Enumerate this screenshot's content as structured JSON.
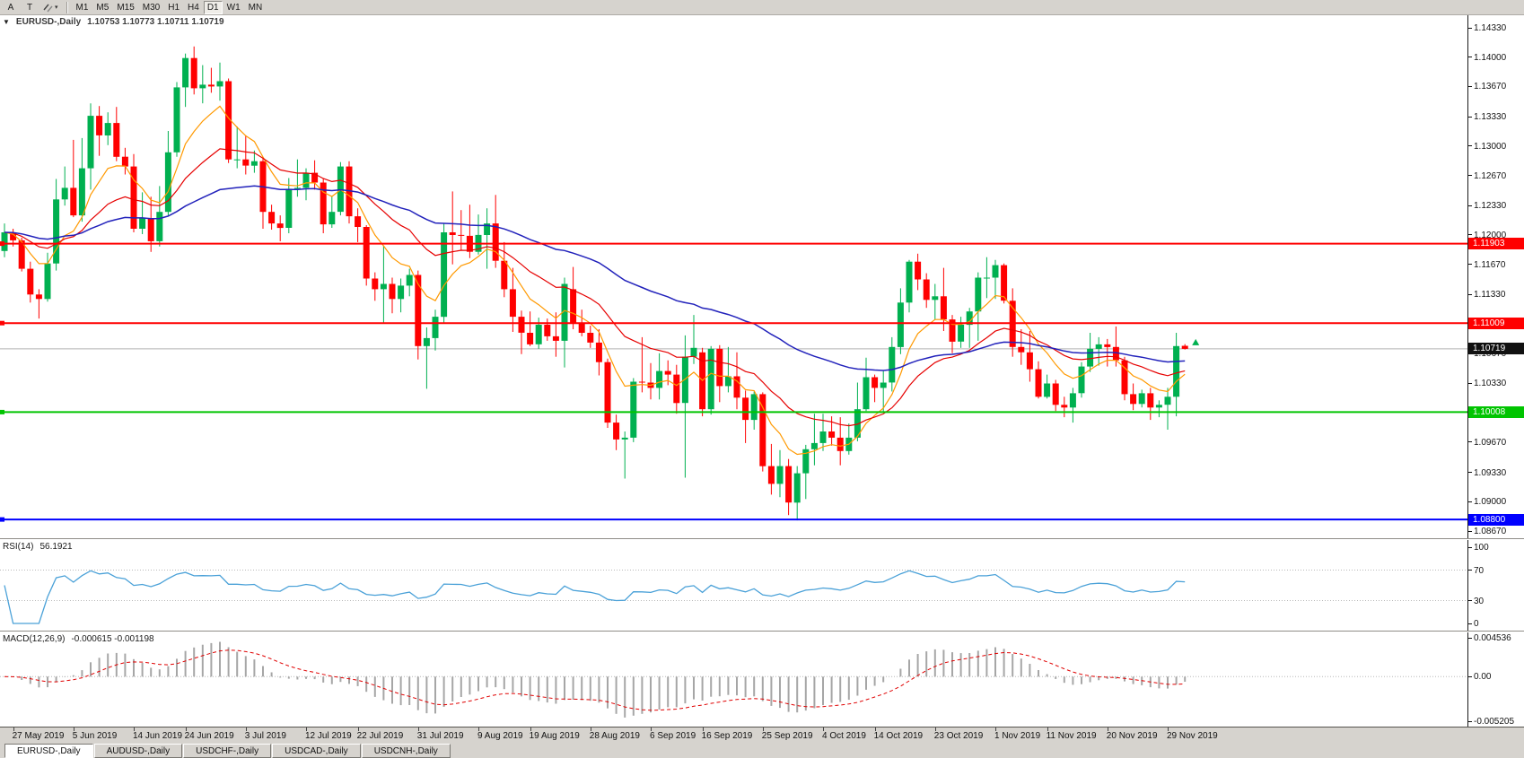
{
  "toolbar": {
    "letter_buttons": [
      "A",
      "T"
    ],
    "caret": "▾",
    "timeframes": [
      "M1",
      "M5",
      "M15",
      "M30",
      "H1",
      "H4",
      "D1",
      "W1",
      "MN"
    ],
    "active_timeframe": "D1"
  },
  "chart": {
    "collapse_icon": "▼",
    "symbol_label": "EURUSD-,Daily",
    "ohlc": "1.10753 1.10773 1.10711 1.10719"
  },
  "chart_data": {
    "type": "candlestick",
    "symbol": "EURUSD-",
    "timeframe": "Daily",
    "colors": {
      "bull": "#00b050",
      "bear": "#ff0000",
      "background": "#ffffff"
    },
    "y_axis": {
      "ticks": [
        "1.14330",
        "1.14000",
        "1.13670",
        "1.13330",
        "1.13000",
        "1.12670",
        "1.12330",
        "1.12000",
        "1.11670",
        "1.11330",
        "1.11000",
        "1.10670",
        "1.10330",
        "1.10000",
        "1.09670",
        "1.09330",
        "1.09000",
        "1.08670"
      ]
    },
    "x_labels": [
      {
        "i": 1,
        "t": "27 May 2019"
      },
      {
        "i": 8,
        "t": "5 Jun 2019"
      },
      {
        "i": 15,
        "t": "14 Jun 2019"
      },
      {
        "i": 21,
        "t": "24 Jun 2019"
      },
      {
        "i": 28,
        "t": "3 Jul 2019"
      },
      {
        "i": 35,
        "t": "12 Jul 2019"
      },
      {
        "i": 41,
        "t": "22 Jul 2019"
      },
      {
        "i": 48,
        "t": "31 Jul 2019"
      },
      {
        "i": 55,
        "t": "9 Aug 2019"
      },
      {
        "i": 61,
        "t": "19 Aug 2019"
      },
      {
        "i": 68,
        "t": "28 Aug 2019"
      },
      {
        "i": 75,
        "t": "6 Sep 2019"
      },
      {
        "i": 81,
        "t": "16 Sep 2019"
      },
      {
        "i": 88,
        "t": "25 Sep 2019"
      },
      {
        "i": 95,
        "t": "4 Oct 2019"
      },
      {
        "i": 101,
        "t": "14 Oct 2019"
      },
      {
        "i": 108,
        "t": "23 Oct 2019"
      },
      {
        "i": 115,
        "t": "1 Nov 2019"
      },
      {
        "i": 121,
        "t": "11 Nov 2019"
      },
      {
        "i": 128,
        "t": "20 Nov 2019"
      },
      {
        "i": 135,
        "t": "29 Nov 2019"
      }
    ],
    "candles": [
      [
        1.1182,
        1.1213,
        1.1175,
        1.1203
      ],
      [
        1.1203,
        1.1207,
        1.1187,
        1.1194
      ],
      [
        1.1194,
        1.1197,
        1.1159,
        1.1162
      ],
      [
        1.1162,
        1.117,
        1.1124,
        1.1133
      ],
      [
        1.1133,
        1.1139,
        1.1106,
        1.1128
      ],
      [
        1.1128,
        1.118,
        1.1125,
        1.1168
      ],
      [
        1.1168,
        1.1263,
        1.116,
        1.124
      ],
      [
        1.124,
        1.1277,
        1.1233,
        1.1253
      ],
      [
        1.1253,
        1.1307,
        1.122,
        1.1222
      ],
      [
        1.1222,
        1.1309,
        1.1215,
        1.1275
      ],
      [
        1.1275,
        1.1348,
        1.1251,
        1.1334
      ],
      [
        1.1334,
        1.1345,
        1.1289,
        1.1312
      ],
      [
        1.1312,
        1.1338,
        1.1301,
        1.1326
      ],
      [
        1.1326,
        1.1344,
        1.1283,
        1.1288
      ],
      [
        1.1288,
        1.1298,
        1.1268,
        1.1277
      ],
      [
        1.1277,
        1.1291,
        1.1203,
        1.1207
      ],
      [
        1.1207,
        1.1248,
        1.1201,
        1.1219
      ],
      [
        1.1219,
        1.1243,
        1.1181,
        1.1193
      ],
      [
        1.1193,
        1.1255,
        1.1187,
        1.1226
      ],
      [
        1.1226,
        1.1317,
        1.1222,
        1.1293
      ],
      [
        1.1293,
        1.1372,
        1.1288,
        1.1366
      ],
      [
        1.1366,
        1.1404,
        1.1344,
        1.1399
      ],
      [
        1.1399,
        1.1412,
        1.1358,
        1.1365
      ],
      [
        1.1365,
        1.1391,
        1.1348,
        1.1369
      ],
      [
        1.1369,
        1.1388,
        1.136,
        1.1367
      ],
      [
        1.1367,
        1.1394,
        1.1351,
        1.1373
      ],
      [
        1.1373,
        1.1376,
        1.1281,
        1.1285
      ],
      [
        1.1285,
        1.1322,
        1.1275,
        1.1285
      ],
      [
        1.1285,
        1.1312,
        1.1268,
        1.1278
      ],
      [
        1.1278,
        1.1295,
        1.127,
        1.1283
      ],
      [
        1.1283,
        1.1288,
        1.1207,
        1.1226
      ],
      [
        1.1226,
        1.1234,
        1.1206,
        1.1213
      ],
      [
        1.1213,
        1.1222,
        1.1193,
        1.1208
      ],
      [
        1.1208,
        1.1264,
        1.1202,
        1.1252
      ],
      [
        1.1252,
        1.1285,
        1.1243,
        1.1253
      ],
      [
        1.1253,
        1.1275,
        1.1239,
        1.127
      ],
      [
        1.127,
        1.1284,
        1.1251,
        1.1259
      ],
      [
        1.1259,
        1.1263,
        1.1202,
        1.1212
      ],
      [
        1.1212,
        1.1243,
        1.1208,
        1.1226
      ],
      [
        1.1226,
        1.1282,
        1.1222,
        1.1277
      ],
      [
        1.1277,
        1.1283,
        1.1213,
        1.1221
      ],
      [
        1.1221,
        1.123,
        1.1192,
        1.1209
      ],
      [
        1.1209,
        1.1211,
        1.1143,
        1.1151
      ],
      [
        1.1151,
        1.1158,
        1.1126,
        1.1139
      ],
      [
        1.1139,
        1.1188,
        1.1101,
        1.1145
      ],
      [
        1.1145,
        1.1152,
        1.1112,
        1.1128
      ],
      [
        1.1128,
        1.1151,
        1.1113,
        1.1143
      ],
      [
        1.1143,
        1.1162,
        1.1131,
        1.1155
      ],
      [
        1.1155,
        1.116,
        1.106,
        1.1075
      ],
      [
        1.1075,
        1.1096,
        1.1027,
        1.1084
      ],
      [
        1.1084,
        1.1116,
        1.107,
        1.1108
      ],
      [
        1.1108,
        1.1213,
        1.1101,
        1.1203
      ],
      [
        1.1203,
        1.1249,
        1.1167,
        1.12
      ],
      [
        1.12,
        1.1228,
        1.1183,
        1.1199
      ],
      [
        1.1199,
        1.1234,
        1.1174,
        1.1181
      ],
      [
        1.1181,
        1.1223,
        1.1178,
        1.12
      ],
      [
        1.12,
        1.123,
        1.1162,
        1.1213
      ],
      [
        1.1213,
        1.1245,
        1.1163,
        1.1171
      ],
      [
        1.1171,
        1.1192,
        1.113,
        1.1139
      ],
      [
        1.1139,
        1.1163,
        1.1091,
        1.1108
      ],
      [
        1.1108,
        1.1115,
        1.1066,
        1.109
      ],
      [
        1.109,
        1.1114,
        1.1075,
        1.1077
      ],
      [
        1.1077,
        1.1107,
        1.1072,
        1.1099
      ],
      [
        1.1099,
        1.1106,
        1.1081,
        1.1086
      ],
      [
        1.1086,
        1.1113,
        1.1063,
        1.1081
      ],
      [
        1.1081,
        1.1152,
        1.1051,
        1.1145
      ],
      [
        1.1139,
        1.1164,
        1.1094,
        1.1101
      ],
      [
        1.1101,
        1.1116,
        1.1086,
        1.109
      ],
      [
        1.109,
        1.1098,
        1.1073,
        1.1079
      ],
      [
        1.1079,
        1.1094,
        1.1042,
        1.1057
      ],
      [
        1.1057,
        1.1061,
        1.0983,
        1.0989
      ],
      [
        1.0989,
        1.0998,
        1.0958,
        1.097
      ],
      [
        1.097,
        1.0979,
        1.0926,
        1.0972
      ],
      [
        1.0972,
        1.1039,
        1.0967,
        1.1035
      ],
      [
        1.1035,
        1.1085,
        1.1023,
        1.1034
      ],
      [
        1.1034,
        1.1056,
        1.1015,
        1.1028
      ],
      [
        1.1028,
        1.1067,
        1.1015,
        1.1047
      ],
      [
        1.1047,
        1.1059,
        1.1031,
        1.1043
      ],
      [
        1.1043,
        1.1054,
        1.0999,
        1.1011
      ],
      [
        1.1011,
        1.1087,
        1.0927,
        1.1063
      ],
      [
        1.1063,
        1.111,
        1.1055,
        1.1073
      ],
      [
        1.1068,
        1.1073,
        1.0996,
        1.1004
      ],
      [
        1.1004,
        1.1075,
        1.0998,
        1.1072
      ],
      [
        1.1072,
        1.1076,
        1.1012,
        1.103
      ],
      [
        1.103,
        1.1074,
        1.1023,
        1.1041
      ],
      [
        1.1041,
        1.1068,
        1.1004,
        1.1017
      ],
      [
        1.1017,
        1.1025,
        1.0966,
        1.0992
      ],
      [
        1.0992,
        1.1024,
        1.0981,
        1.1021
      ],
      [
        1.1021,
        1.1023,
        1.0934,
        1.094
      ],
      [
        1.094,
        1.0965,
        1.0908,
        1.092
      ],
      [
        1.092,
        1.0958,
        1.0905,
        1.094
      ],
      [
        1.094,
        1.0948,
        1.0885,
        1.0899
      ],
      [
        1.0899,
        1.094,
        1.0879,
        1.0932
      ],
      [
        1.0932,
        1.0964,
        1.0903,
        1.0959
      ],
      [
        1.0959,
        1.0999,
        1.0941,
        1.0966
      ],
      [
        1.0966,
        1.0999,
        1.0957,
        1.0979
      ],
      [
        1.0979,
        1.0996,
        1.0963,
        1.0972
      ],
      [
        1.0972,
        1.0995,
        1.0941,
        1.0957
      ],
      [
        1.0957,
        1.0988,
        1.0953,
        1.0972
      ],
      [
        1.0972,
        1.1034,
        1.0968,
        1.1004
      ],
      [
        1.1004,
        1.1062,
        1.1002,
        1.104
      ],
      [
        1.104,
        1.1043,
        1.1012,
        1.1028
      ],
      [
        1.1028,
        1.1047,
        1.1001,
        1.1034
      ],
      [
        1.1034,
        1.1085,
        1.1024,
        1.1074
      ],
      [
        1.1074,
        1.114,
        1.1066,
        1.1124
      ],
      [
        1.1124,
        1.1172,
        1.1113,
        1.117
      ],
      [
        1.117,
        1.1179,
        1.1138,
        1.115
      ],
      [
        1.115,
        1.1157,
        1.1118,
        1.1127
      ],
      [
        1.1127,
        1.1145,
        1.1105,
        1.1131
      ],
      [
        1.1131,
        1.1163,
        1.1092,
        1.1105
      ],
      [
        1.1105,
        1.111,
        1.1067,
        1.108
      ],
      [
        1.108,
        1.1108,
        1.1073,
        1.1099
      ],
      [
        1.1099,
        1.1118,
        1.1073,
        1.1114
      ],
      [
        1.1114,
        1.1158,
        1.1081,
        1.1152
      ],
      [
        1.1152,
        1.1175,
        1.1129,
        1.1152
      ],
      [
        1.1152,
        1.1172,
        1.1128,
        1.1166
      ],
      [
        1.1166,
        1.1168,
        1.1123,
        1.1126
      ],
      [
        1.1126,
        1.114,
        1.1063,
        1.1074
      ],
      [
        1.1074,
        1.1094,
        1.1054,
        1.1068
      ],
      [
        1.1068,
        1.1092,
        1.1035,
        1.1049
      ],
      [
        1.1049,
        1.1058,
        1.1016,
        1.1018
      ],
      [
        1.1018,
        1.1043,
        1.1016,
        1.1033
      ],
      [
        1.1033,
        1.1037,
        1.1002,
        1.1009
      ],
      [
        1.1009,
        1.1018,
        1.0995,
        1.1006
      ],
      [
        1.1006,
        1.1028,
        1.0989,
        1.1022
      ],
      [
        1.1022,
        1.1057,
        1.1017,
        1.1052
      ],
      [
        1.1052,
        1.109,
        1.1046,
        1.1072
      ],
      [
        1.1072,
        1.1085,
        1.1053,
        1.1077
      ],
      [
        1.1077,
        1.1083,
        1.1052,
        1.1074
      ],
      [
        1.1074,
        1.1097,
        1.1052,
        1.1059
      ],
      [
        1.1059,
        1.1063,
        1.1014,
        1.1021
      ],
      [
        1.1021,
        1.1033,
        1.1003,
        1.101
      ],
      [
        1.101,
        1.1026,
        1.1006,
        1.1022
      ],
      [
        1.1022,
        1.1028,
        1.0992,
        1.1006
      ],
      [
        1.1006,
        1.1014,
        1.0995,
        1.1009
      ],
      [
        1.1009,
        1.1028,
        1.0981,
        1.1018
      ],
      [
        1.1018,
        1.109,
        1.0996,
        1.1075
      ],
      [
        1.10753,
        1.10773,
        1.10711,
        1.10719
      ]
    ],
    "moving_averages": [
      {
        "period": 8,
        "method": "ema",
        "color": "#ff9900"
      },
      {
        "period": 21,
        "method": "ema",
        "color": "#e60000"
      },
      {
        "period": 55,
        "method": "ema",
        "color": "#2222bb"
      }
    ],
    "hlines": [
      {
        "price": 1.11903,
        "label": "1.11903",
        "color": "#ff0000"
      },
      {
        "price": 1.11009,
        "label": "1.11009",
        "color": "#ff0000"
      },
      {
        "price": 1.10008,
        "label": "1.10008",
        "color": "#00c400"
      },
      {
        "price": 1.088,
        "label": "1.08800",
        "color": "#0000ff"
      }
    ],
    "current_price": {
      "value": 1.10719,
      "label": "1.10719",
      "box_color": "#111111",
      "line_color": "#b3b3b3"
    },
    "marker": {
      "price": 1.1079,
      "color": "#00b050"
    },
    "rsi": {
      "name": "RSI(14)",
      "value": "56.1921",
      "period": 14,
      "color": "#4aa1d8",
      "levels": [
        "100",
        "70",
        "30",
        "0"
      ],
      "level_lines": [
        70,
        30
      ]
    },
    "macd": {
      "name": "MACD(12,26,9)",
      "values": "-0.000615 -0.001198",
      "fast": 12,
      "slow": 26,
      "signal": 9,
      "scale": [
        "0.004536",
        "0.00",
        "-0.005205"
      ],
      "histogram_color": "#a6a6a6",
      "signal_color": "#e00000"
    }
  },
  "tabs": {
    "items": [
      "EURUSD-,Daily",
      "AUDUSD-,Daily",
      "USDCHF-,Daily",
      "USDCAD-,Daily",
      "USDCNH-,Daily"
    ],
    "active": 0
  }
}
